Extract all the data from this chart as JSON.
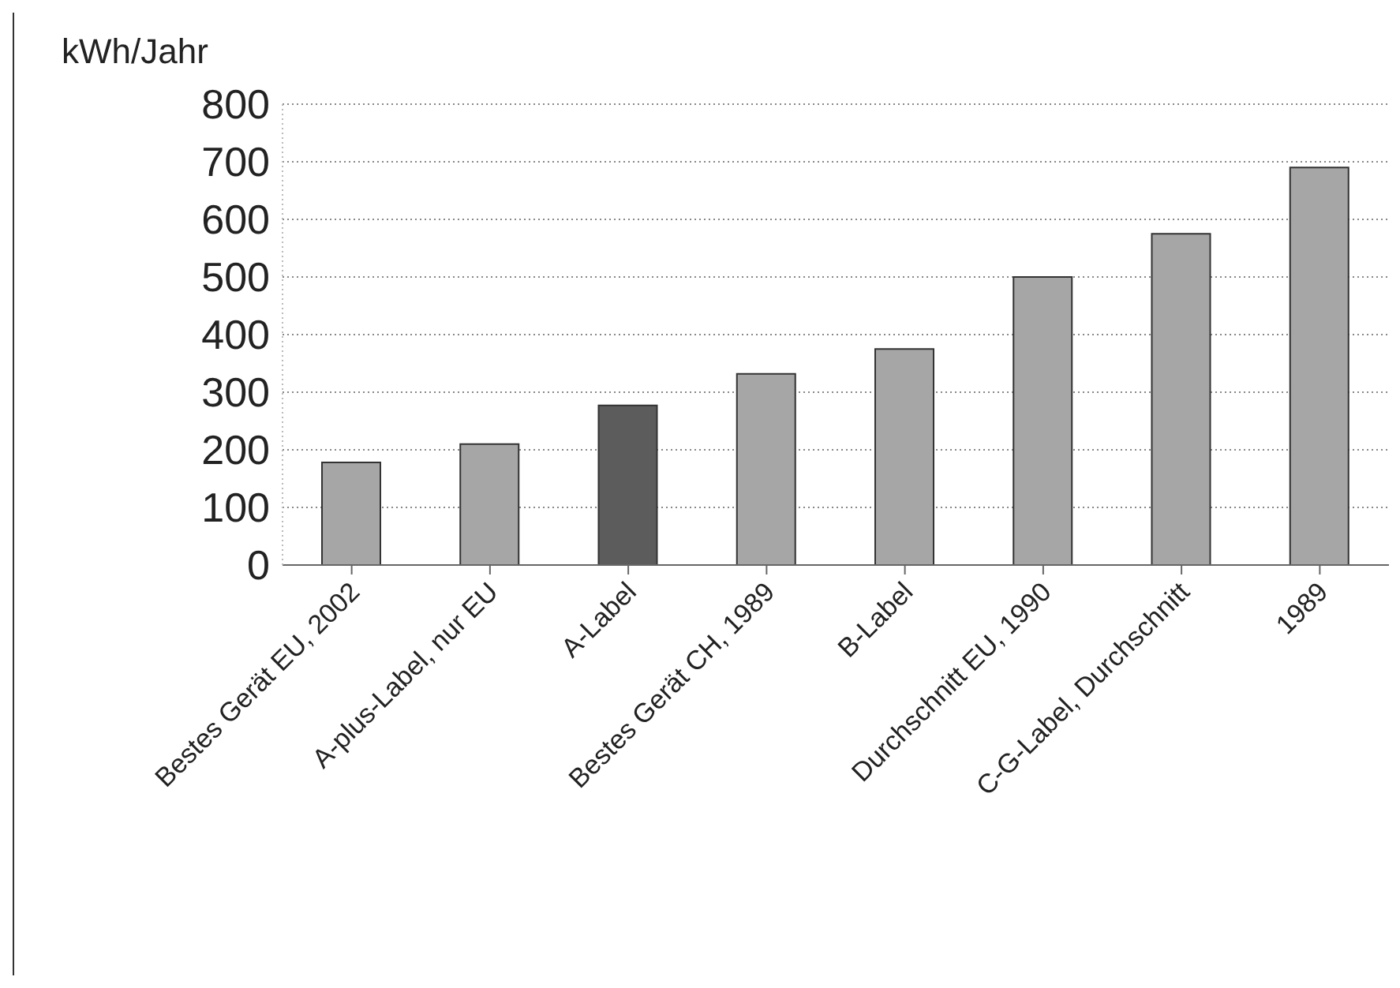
{
  "chart_data": {
    "type": "bar",
    "ylabel": "kWh/Jahr",
    "categories": [
      "Bestes Gerät EU, 2002",
      "A-plus-Label, nur EU",
      "A-Label",
      "Bestes Gerät CH, 1989",
      "B-Label",
      "Durchschnitt EU, 1990",
      "C-G-Label, Durchschnitt",
      "1989"
    ],
    "values": [
      178,
      210,
      277,
      332,
      375,
      500,
      575,
      690
    ],
    "colors": [
      "#a6a6a6",
      "#a6a6a6",
      "#5c5c5c",
      "#a6a6a6",
      "#a6a6a6",
      "#a6a6a6",
      "#a6a6a6",
      "#a6a6a6"
    ],
    "ylim": [
      0,
      800
    ],
    "yticks": [
      0,
      100,
      200,
      300,
      400,
      500,
      600,
      700,
      800
    ],
    "grid": "y",
    "legend": false
  }
}
